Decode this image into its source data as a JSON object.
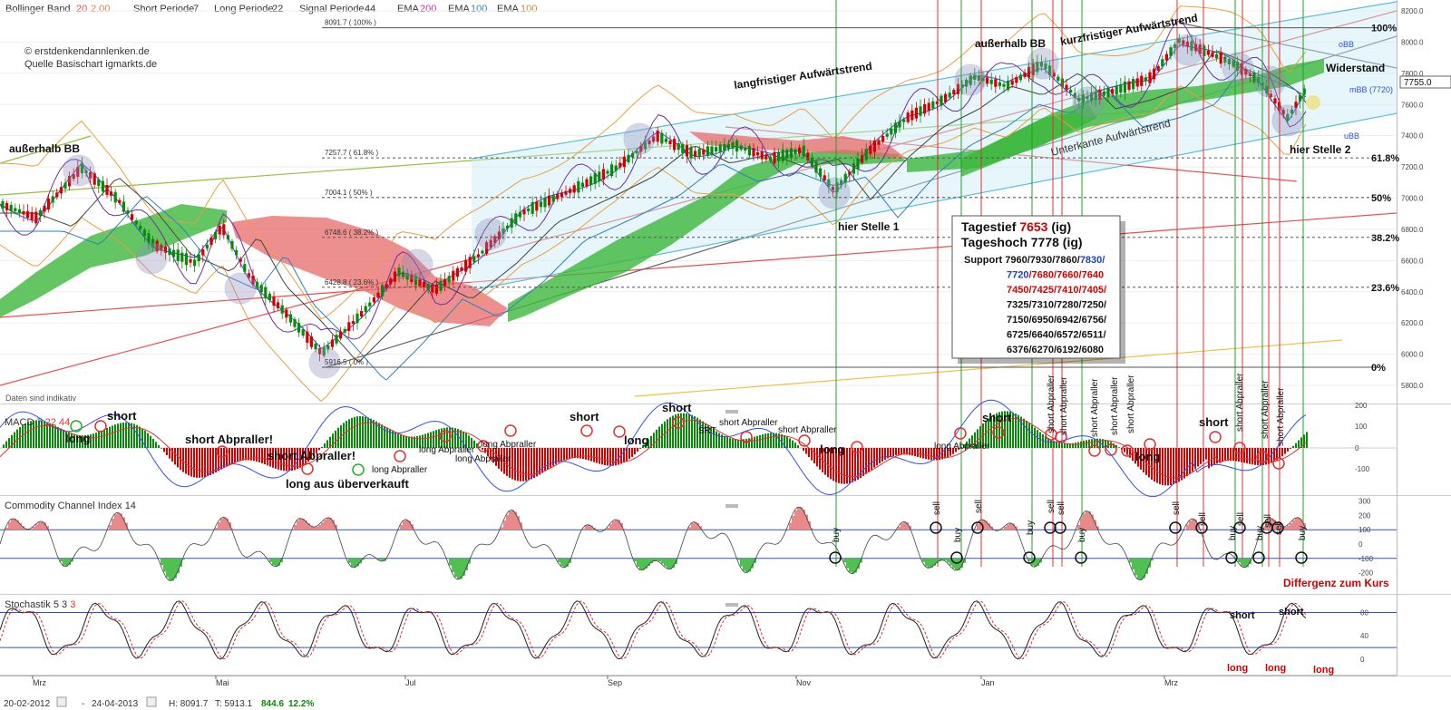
{
  "header": {
    "bb": {
      "label": "Bollinger Band",
      "v1": "20",
      "v2": "2.00"
    },
    "macd": {
      "short_label": "Short Periode",
      "short_value": "7",
      "long_label": "Long Periode",
      "long_value": "22",
      "signal_label": "Signal Periode",
      "signal_value": "44"
    },
    "ema": [
      {
        "label": "EMA",
        "value": "200"
      },
      {
        "label": "EMA",
        "value": "100"
      },
      {
        "label": "EMA",
        "value": "100"
      }
    ]
  },
  "source": {
    "copyright": "© erstdenkendannlenken.de",
    "base": "Quelle Basischart igmarkts.de",
    "disclaimer": "Daten sind indikativ"
  },
  "colors": {
    "up": "#0a8a0a",
    "down": "#d40000",
    "cloud_up": "#3cb83c",
    "cloud_down": "#e86a6a",
    "bb": "#e8a040",
    "mbb": "#3050e0",
    "macd_line": "#3050e0",
    "signal_line": "#e03030",
    "accent": "#d40000"
  },
  "price_panel": {
    "y_ticks": [
      "8200.0",
      "8000.0",
      "7800.0",
      "7600.0",
      "7400.0",
      "7200.0",
      "7000.0",
      "6800.0",
      "6600.0",
      "6400.0",
      "6200.0",
      "6000.0",
      "5800.0"
    ],
    "current_price": "7755.0",
    "fib": [
      {
        "label": "8091.7 ( 100% )",
        "pct": "100%",
        "value": 8091.7
      },
      {
        "label": "7257.7 ( 61.8% )",
        "pct": "61.8%",
        "value": 7257.7
      },
      {
        "label": "7004.1 ( 50% )",
        "pct": "50%",
        "value": 7004.1
      },
      {
        "label": "6748.6 ( 38.2% )",
        "pct": "38.2%",
        "value": 6748.6
      },
      {
        "label": "6428.8 ( 23.6% )",
        "pct": "23.6%",
        "value": 6428.8
      },
      {
        "label": "5916.5 ( 0% )",
        "pct": "0%",
        "value": 5916.5
      }
    ],
    "annotations": {
      "ausserhalb_left": "außerhalb BB",
      "ausserhalb_top": "außerhalb BB",
      "langfristig": "langfristiger Aufwärtstrend",
      "kurzfristig": "kurzfristiger Aufwärtstrend",
      "unterkante": "Unterkante Aufwärtstrend",
      "widerstand": "Widerstand",
      "obb": "oBB",
      "mbb": "mBB (7720)",
      "ubb": "uBB",
      "stelle1": "hier Stelle 1",
      "stelle2": "hier Stelle 2"
    },
    "infobox": {
      "tief_label": "Tagestief",
      "tief_value": "7653",
      "tief_suffix": "(ig)",
      "hoch": "Tageshoch 7778 (ig)",
      "support_label": "Support",
      "lines": [
        [
          {
            "t": "7960/7930/7860/",
            "c": "k"
          },
          {
            "t": "7830/",
            "c": "b"
          }
        ],
        [
          {
            "t": "7720",
            "c": "b"
          },
          {
            "t": "/7680/7660/7640",
            "c": "r"
          }
        ],
        [
          {
            "t": "7450/7425/7410/7405/",
            "c": "r"
          }
        ],
        [
          {
            "t": "7325/7310/7280/7250/",
            "c": "k"
          }
        ],
        [
          {
            "t": "7150/6950/6942/6756/",
            "c": "k"
          }
        ],
        [
          {
            "t": "6725/6640/6572/6511/",
            "c": "k"
          }
        ],
        [
          {
            "t": "6376/6270/6192/6080",
            "c": "k"
          }
        ]
      ]
    }
  },
  "macd_panel": {
    "title": "MACD",
    "p1": "7",
    "p2": "22",
    "p3": "44",
    "y_ticks": [
      "200",
      "100",
      "0",
      "-100"
    ],
    "labels": [
      {
        "text": "short",
        "x": 118,
        "y": 463,
        "big": true
      },
      {
        "text": "long",
        "x": 72,
        "y": 488,
        "big": true
      },
      {
        "text": "short Abpraller!",
        "x": 204,
        "y": 489,
        "big": true
      },
      {
        "text": "short Abpraller!",
        "x": 295,
        "y": 507,
        "big": true
      },
      {
        "text": "long aus überverkauft",
        "x": 315,
        "y": 538,
        "big": true
      },
      {
        "text": "long Abpraller",
        "x": 410,
        "y": 521,
        "big": false
      },
      {
        "text": "long Abpraller",
        "x": 462,
        "y": 499,
        "big": false
      },
      {
        "text": "long Abpraller",
        "x": 530,
        "y": 493,
        "big": false
      },
      {
        "text": "long Abpraller",
        "x": 502,
        "y": 509,
        "big": false
      },
      {
        "text": "short",
        "x": 628,
        "y": 464,
        "big": true
      },
      {
        "text": "long",
        "x": 688,
        "y": 490,
        "big": true
      },
      {
        "text": "short",
        "x": 730,
        "y": 454,
        "big": true
      },
      {
        "text": "SRT",
        "x": 770,
        "y": 478,
        "big": false
      },
      {
        "text": "short Abpraller",
        "x": 793,
        "y": 469,
        "big": false
      },
      {
        "text": "short Abpraller",
        "x": 858,
        "y": 477,
        "big": false
      },
      {
        "text": "long",
        "x": 904,
        "y": 500,
        "big": true
      },
      {
        "text": "long Abpraller",
        "x": 1030,
        "y": 495,
        "big": false
      },
      {
        "text": "short",
        "x": 1083,
        "y": 465,
        "big": true
      },
      {
        "text": "long",
        "x": 1252,
        "y": 508,
        "big": true
      },
      {
        "text": "short",
        "x": 1322,
        "y": 470,
        "big": true
      }
    ],
    "vlabels": [
      {
        "text": "short Abpraller",
        "x": 1162,
        "y": 478
      },
      {
        "text": "short Abpraller",
        "x": 1176,
        "y": 480
      },
      {
        "text": "short Abpraller",
        "x": 1210,
        "y": 482
      },
      {
        "text": "short Abpraller",
        "x": 1232,
        "y": 480
      },
      {
        "text": "short Abpraller",
        "x": 1250,
        "y": 478
      },
      {
        "text": "short Abpraller",
        "x": 1370,
        "y": 476
      },
      {
        "text": "short Abpraller",
        "x": 1398,
        "y": 484
      },
      {
        "text": "short Abpraller",
        "x": 1415,
        "y": 492
      }
    ]
  },
  "cci_panel": {
    "title": "Commodity Channel Index",
    "period": "14",
    "y_ticks": [
      "300",
      "200",
      "100",
      "0",
      "-100",
      "-200"
    ],
    "divergence": "Differgenz zum Kurs",
    "signals": [
      {
        "text": "buy",
        "x": 925,
        "y": 598
      },
      {
        "text": "sell",
        "x": 1036,
        "y": 568
      },
      {
        "text": "buy",
        "x": 1059,
        "y": 598
      },
      {
        "text": "sell",
        "x": 1082,
        "y": 566
      },
      {
        "text": "buy",
        "x": 1139,
        "y": 590
      },
      {
        "text": "sell",
        "x": 1162,
        "y": 566
      },
      {
        "text": "sell",
        "x": 1173,
        "y": 568
      },
      {
        "text": "buy",
        "x": 1196,
        "y": 598
      },
      {
        "text": "sell",
        "x": 1300,
        "y": 568
      },
      {
        "text": "sell",
        "x": 1329,
        "y": 580
      },
      {
        "text": "buy",
        "x": 1362,
        "y": 596
      },
      {
        "text": "sell",
        "x": 1371,
        "y": 580
      },
      {
        "text": "buy",
        "x": 1392,
        "y": 596
      },
      {
        "text": "sell",
        "x": 1401,
        "y": 582
      },
      {
        "text": "sell",
        "x": 1413,
        "y": 590
      },
      {
        "text": "buy",
        "x": 1439,
        "y": 596
      }
    ]
  },
  "stoch_panel": {
    "title": "Stochastik",
    "p1": "5",
    "p2": "3",
    "p3": "3",
    "y_ticks": [
      "80",
      "40",
      "0"
    ],
    "labels": [
      {
        "text": "short",
        "x": 1386,
        "y": 682,
        "c": "k"
      },
      {
        "text": "short",
        "x": 1440,
        "y": 678,
        "c": "k"
      },
      {
        "text": "long",
        "x": 1383,
        "y": 740,
        "c": "r"
      },
      {
        "text": "long",
        "x": 1425,
        "y": 740,
        "c": "r"
      },
      {
        "text": "long",
        "x": 1478,
        "y": 742,
        "c": "r"
      }
    ]
  },
  "x_axis": {
    "months": [
      {
        "label": "Mrz",
        "x": 36
      },
      {
        "label": "Mai",
        "x": 238
      },
      {
        "label": "Jul",
        "x": 447
      },
      {
        "label": "Sep",
        "x": 670
      },
      {
        "label": "Nov",
        "x": 878
      },
      {
        "label": "Jan",
        "x": 1082
      },
      {
        "label": "Mrz",
        "x": 1284
      }
    ]
  },
  "footer": {
    "start_date": "20-02-2012",
    "dash": "-",
    "end_date": "24-04-2013",
    "high": "H: 8091.7",
    "low": "T: 5913.1",
    "diff": "844.6",
    "pct": "12.2%"
  },
  "chart_data": {
    "type": "line",
    "title": "",
    "xlabel": "",
    "ylabel": "",
    "x_range": [
      "20-02-2012",
      "24-04-2013"
    ],
    "ylim": [
      5800,
      8200
    ],
    "x": [
      "Mrz",
      "Mai",
      "Jul",
      "Sep",
      "Nov",
      "Jan",
      "Mrz"
    ],
    "series": [
      {
        "name": "",
        "values": [
          6950,
          6300,
          6150,
          6900,
          7100,
          7650,
          7700
        ]
      }
    ],
    "fibonacci": {
      "0%": 5916.5,
      "23.6%": 6428.8,
      "38.2%": 6748.6,
      "50%": 7004.1,
      "61.8%": 7257.7,
      "100%": 8091.7
    },
    "high": 8091.7,
    "low": 5913.1,
    "last": 7755.0
  }
}
